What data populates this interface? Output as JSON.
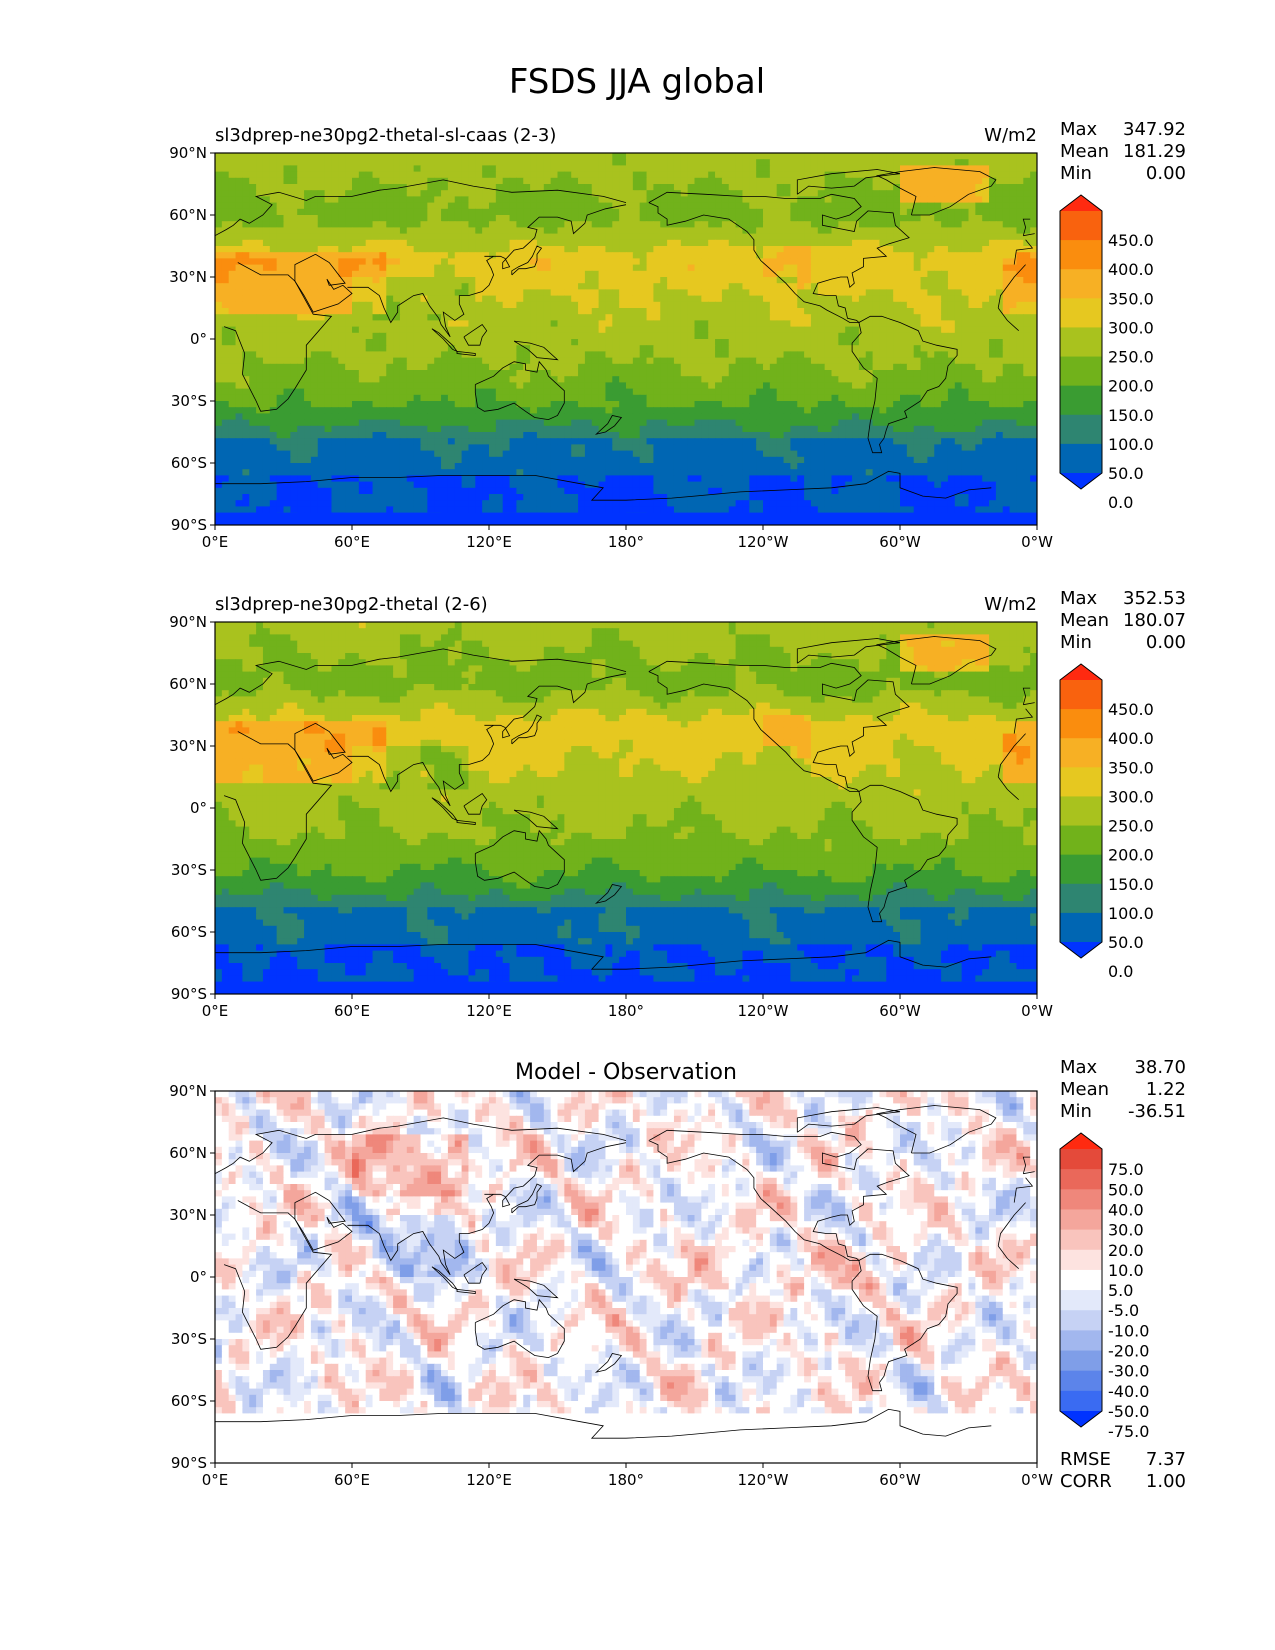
{
  "figure": {
    "title": "FSDS JJA global"
  },
  "colors": {
    "levels_main": [
      "#0033ff",
      "#0066b3",
      "#2e8571",
      "#3a9c32",
      "#71b21b",
      "#a9c21e",
      "#e6c820",
      "#f7b024",
      "#fa8d0e",
      "#f9620e",
      "#ff2a10"
    ],
    "levels_diff": [
      "#0033ff",
      "#3a6bf2",
      "#5c84ea",
      "#7f9ee8",
      "#a2b7ee",
      "#c6d2f4",
      "#e3e9fa",
      "#ffffff",
      "#fde3e0",
      "#f9c4bd",
      "#f4a69c",
      "#ef877b",
      "#ea685a",
      "#e44a3a",
      "#ff2a10"
    ],
    "coastline": "#000000",
    "frame": "#000000"
  },
  "panels": [
    {
      "id": "panel1",
      "title_left": "sl3dprep-ne30pg2-thetal-sl-caas (2-3)",
      "title_center": "",
      "units": "W/m2",
      "stats": [
        {
          "label": "Max",
          "value": "347.92"
        },
        {
          "label": "Mean",
          "value": "181.29"
        },
        {
          "label": "Min",
          "value": "0.00"
        }
      ],
      "colorbar_type": "main",
      "colorbar_labels": [
        "450.0",
        "400.0",
        "350.0",
        "300.0",
        "250.0",
        "200.0",
        "150.0",
        "100.0",
        "50.0",
        "0.0"
      ],
      "x_ticks": [
        "0°E",
        "60°E",
        "120°E",
        "180°",
        "120°W",
        "60°W",
        "0°W"
      ],
      "y_ticks": [
        "90°N",
        "60°N",
        "30°N",
        "0°",
        "30°S",
        "60°S",
        "90°S"
      ],
      "extra_stats": []
    },
    {
      "id": "panel2",
      "title_left": "sl3dprep-ne30pg2-thetal (2-6)",
      "title_center": "",
      "units": "W/m2",
      "stats": [
        {
          "label": "Max",
          "value": "352.53"
        },
        {
          "label": "Mean",
          "value": "180.07"
        },
        {
          "label": "Min",
          "value": "0.00"
        }
      ],
      "colorbar_type": "main",
      "colorbar_labels": [
        "450.0",
        "400.0",
        "350.0",
        "300.0",
        "250.0",
        "200.0",
        "150.0",
        "100.0",
        "50.0",
        "0.0"
      ],
      "x_ticks": [
        "0°E",
        "60°E",
        "120°E",
        "180°",
        "120°W",
        "60°W",
        "0°W"
      ],
      "y_ticks": [
        "90°N",
        "60°N",
        "30°N",
        "0°",
        "30°S",
        "60°S",
        "90°S"
      ],
      "extra_stats": []
    },
    {
      "id": "panel3",
      "title_left": "",
      "title_center": "Model - Observation",
      "units": "",
      "stats": [
        {
          "label": "Max",
          "value": "38.70"
        },
        {
          "label": "Mean",
          "value": "1.22"
        },
        {
          "label": "Min",
          "value": "-36.51"
        }
      ],
      "colorbar_type": "diff",
      "colorbar_labels": [
        "75.0",
        "50.0",
        "40.0",
        "30.0",
        "20.0",
        "10.0",
        "5.0",
        "-5.0",
        "-10.0",
        "-20.0",
        "-30.0",
        "-40.0",
        "-50.0",
        "-75.0"
      ],
      "x_ticks": [
        "0°E",
        "60°E",
        "120°E",
        "180°",
        "120°W",
        "60°W",
        "0°W"
      ],
      "y_ticks": [
        "90°N",
        "60°N",
        "30°N",
        "0°",
        "30°S",
        "60°S",
        "90°S"
      ],
      "extra_stats": [
        {
          "label": "RMSE",
          "value": "7.37"
        },
        {
          "label": "CORR",
          "value": "1.00"
        }
      ]
    }
  ],
  "chart_data": [
    {
      "type": "heatmap",
      "title": "sl3dprep-ne30pg2-thetal-sl-caas (2-3)",
      "units": "W/m2",
      "xlim": [
        0,
        360
      ],
      "ylim": [
        -90,
        90
      ],
      "x_ticks": [
        "0°E",
        "60°E",
        "120°E",
        "180°",
        "120°W",
        "60°W",
        "0°W"
      ],
      "y_ticks": [
        "90°N",
        "60°N",
        "30°N",
        "0°",
        "30°S",
        "60°S",
        "90°S"
      ],
      "levels": [
        0,
        50,
        100,
        150,
        200,
        250,
        300,
        350,
        400,
        450
      ],
      "stats": {
        "max": 347.92,
        "mean": 181.29,
        "min": 0.0
      }
    },
    {
      "type": "heatmap",
      "title": "sl3dprep-ne30pg2-thetal (2-6)",
      "units": "W/m2",
      "xlim": [
        0,
        360
      ],
      "ylim": [
        -90,
        90
      ],
      "x_ticks": [
        "0°E",
        "60°E",
        "120°E",
        "180°",
        "120°W",
        "60°W",
        "0°W"
      ],
      "y_ticks": [
        "90°N",
        "60°N",
        "30°N",
        "0°",
        "30°S",
        "60°S",
        "90°S"
      ],
      "levels": [
        0,
        50,
        100,
        150,
        200,
        250,
        300,
        350,
        400,
        450
      ],
      "stats": {
        "max": 352.53,
        "mean": 180.07,
        "min": 0.0
      }
    },
    {
      "type": "heatmap",
      "title": "Model - Observation",
      "xlim": [
        0,
        360
      ],
      "ylim": [
        -90,
        90
      ],
      "x_ticks": [
        "0°E",
        "60°E",
        "120°E",
        "180°",
        "120°W",
        "60°W",
        "0°W"
      ],
      "y_ticks": [
        "90°N",
        "60°N",
        "30°N",
        "0°",
        "30°S",
        "60°S",
        "90°S"
      ],
      "levels": [
        -75,
        -50,
        -40,
        -30,
        -20,
        -10,
        -5,
        5,
        10,
        20,
        30,
        40,
        50,
        75
      ],
      "stats": {
        "max": 38.7,
        "mean": 1.22,
        "min": -36.51,
        "rmse": 7.37,
        "corr": 1.0
      }
    }
  ]
}
